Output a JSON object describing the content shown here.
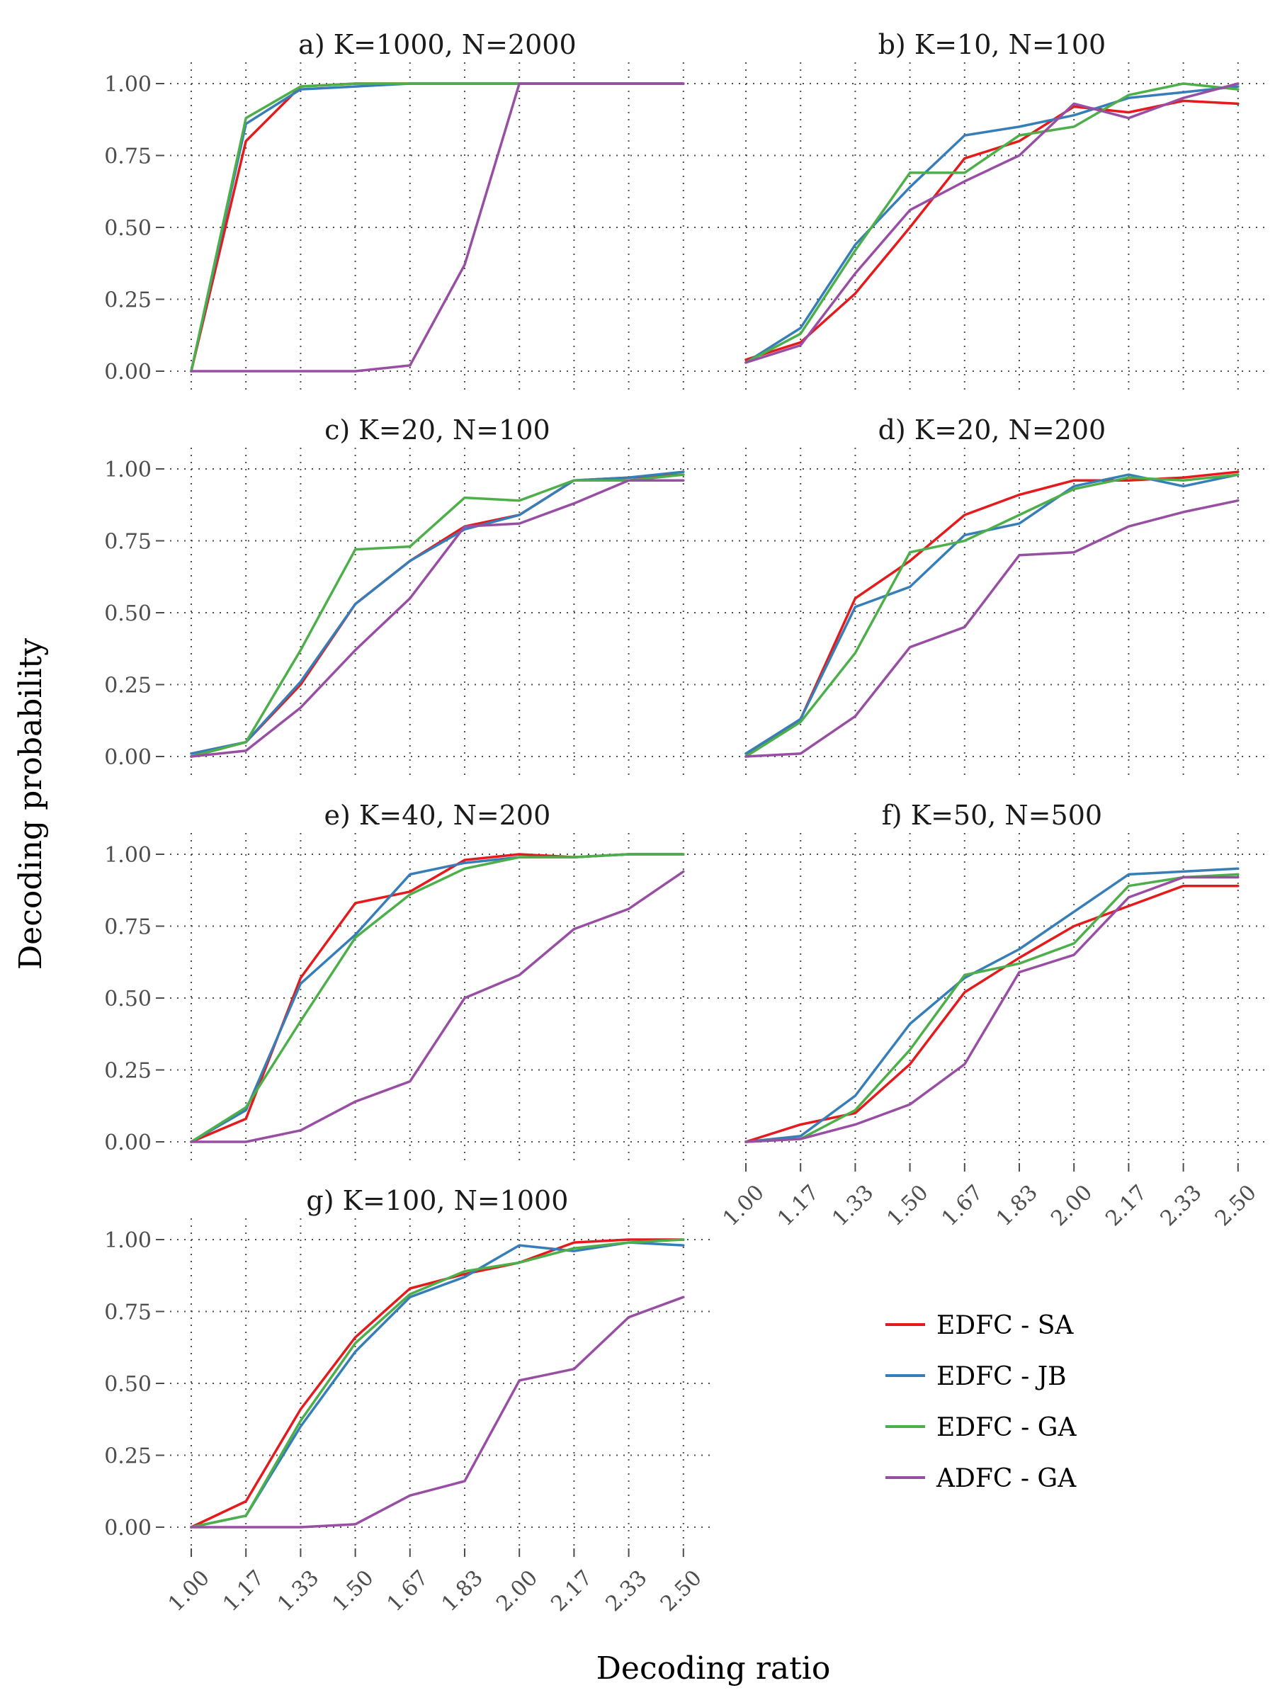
{
  "figure": {
    "xlabel": "Decoding ratio",
    "ylabel": "Decoding probability"
  },
  "legend": [
    {
      "name": "EDFC - SA",
      "color": "#e41a1c"
    },
    {
      "name": "EDFC - JB",
      "color": "#377eb8"
    },
    {
      "name": "EDFC - GA",
      "color": "#4daf4a"
    },
    {
      "name": "ADFC - GA",
      "color": "#984ea3"
    }
  ],
  "chart_data": [
    {
      "type": "line",
      "title": "a) K=1000, N=2000",
      "x": [
        "1.00",
        "1.17",
        "1.33",
        "1.50",
        "1.67",
        "1.83",
        "2.00",
        "2.17",
        "2.33",
        "2.50"
      ],
      "ylim": [
        0,
        1
      ],
      "yticks": [
        "0.00",
        "0.25",
        "0.50",
        "0.75",
        "1.00"
      ],
      "series": [
        {
          "name": "EDFC - SA",
          "values": [
            0.0,
            0.8,
            0.99,
            1.0,
            1.0,
            1.0,
            1.0,
            1.0,
            1.0,
            1.0
          ]
        },
        {
          "name": "EDFC - JB",
          "values": [
            0.0,
            0.86,
            0.98,
            0.99,
            1.0,
            1.0,
            1.0,
            1.0,
            1.0,
            1.0
          ]
        },
        {
          "name": "EDFC - GA",
          "values": [
            0.0,
            0.88,
            0.99,
            1.0,
            1.0,
            1.0,
            1.0,
            1.0,
            1.0,
            1.0
          ]
        },
        {
          "name": "ADFC - GA",
          "values": [
            0.0,
            0.0,
            0.0,
            0.0,
            0.02,
            0.37,
            1.0,
            1.0,
            1.0,
            1.0
          ]
        }
      ]
    },
    {
      "type": "line",
      "title": "b) K=10, N=100",
      "x": [
        "1.00",
        "1.17",
        "1.33",
        "1.50",
        "1.67",
        "1.83",
        "2.00",
        "2.17",
        "2.33",
        "2.50"
      ],
      "ylim": [
        0,
        1
      ],
      "yticks": [
        "0.00",
        "0.25",
        "0.50",
        "0.75",
        "1.00"
      ],
      "series": [
        {
          "name": "EDFC - SA",
          "values": [
            0.04,
            0.1,
            0.27,
            0.5,
            0.74,
            0.8,
            0.92,
            0.9,
            0.94,
            0.93
          ]
        },
        {
          "name": "EDFC - JB",
          "values": [
            0.03,
            0.15,
            0.44,
            0.64,
            0.82,
            0.85,
            0.89,
            0.95,
            0.97,
            0.99
          ]
        },
        {
          "name": "EDFC - GA",
          "values": [
            0.03,
            0.13,
            0.42,
            0.69,
            0.69,
            0.82,
            0.85,
            0.96,
            1.0,
            0.98
          ]
        },
        {
          "name": "ADFC - GA",
          "values": [
            0.03,
            0.09,
            0.34,
            0.56,
            0.66,
            0.75,
            0.93,
            0.88,
            0.95,
            1.0
          ]
        }
      ]
    },
    {
      "type": "line",
      "title": "c) K=20, N=100",
      "x": [
        "1.00",
        "1.17",
        "1.33",
        "1.50",
        "1.67",
        "1.83",
        "2.00",
        "2.17",
        "2.33",
        "2.50"
      ],
      "ylim": [
        0,
        1
      ],
      "yticks": [
        "0.00",
        "0.25",
        "0.50",
        "0.75",
        "1.00"
      ],
      "series": [
        {
          "name": "EDFC - SA",
          "values": [
            0.0,
            0.05,
            0.25,
            0.53,
            0.68,
            0.8,
            0.84,
            0.96,
            0.97,
            0.98
          ]
        },
        {
          "name": "EDFC - JB",
          "values": [
            0.01,
            0.05,
            0.26,
            0.53,
            0.68,
            0.79,
            0.84,
            0.96,
            0.97,
            0.99
          ]
        },
        {
          "name": "EDFC - GA",
          "values": [
            0.0,
            0.05,
            0.37,
            0.72,
            0.73,
            0.9,
            0.89,
            0.96,
            0.96,
            0.98
          ]
        },
        {
          "name": "ADFC - GA",
          "values": [
            0.0,
            0.02,
            0.17,
            0.37,
            0.55,
            0.8,
            0.81,
            0.88,
            0.96,
            0.96
          ]
        }
      ]
    },
    {
      "type": "line",
      "title": "d) K=20, N=200",
      "x": [
        "1.00",
        "1.17",
        "1.33",
        "1.50",
        "1.67",
        "1.83",
        "2.00",
        "2.17",
        "2.33",
        "2.50"
      ],
      "ylim": [
        0,
        1
      ],
      "yticks": [
        "0.00",
        "0.25",
        "0.50",
        "0.75",
        "1.00"
      ],
      "series": [
        {
          "name": "EDFC - SA",
          "values": [
            0.0,
            0.13,
            0.55,
            0.68,
            0.84,
            0.91,
            0.96,
            0.96,
            0.97,
            0.99
          ]
        },
        {
          "name": "EDFC - JB",
          "values": [
            0.01,
            0.13,
            0.52,
            0.59,
            0.77,
            0.81,
            0.94,
            0.98,
            0.94,
            0.98
          ]
        },
        {
          "name": "EDFC - GA",
          "values": [
            0.0,
            0.12,
            0.36,
            0.71,
            0.75,
            0.84,
            0.93,
            0.97,
            0.96,
            0.98
          ]
        },
        {
          "name": "ADFC - GA",
          "values": [
            0.0,
            0.01,
            0.14,
            0.38,
            0.45,
            0.7,
            0.71,
            0.8,
            0.85,
            0.89
          ]
        }
      ]
    },
    {
      "type": "line",
      "title": "e) K=40, N=200",
      "x": [
        "1.00",
        "1.17",
        "1.33",
        "1.50",
        "1.67",
        "1.83",
        "2.00",
        "2.17",
        "2.33",
        "2.50"
      ],
      "ylim": [
        0,
        1
      ],
      "yticks": [
        "0.00",
        "0.25",
        "0.50",
        "0.75",
        "1.00"
      ],
      "series": [
        {
          "name": "EDFC - SA",
          "values": [
            0.0,
            0.08,
            0.57,
            0.83,
            0.87,
            0.98,
            1.0,
            0.99,
            1.0,
            1.0
          ]
        },
        {
          "name": "EDFC - JB",
          "values": [
            0.0,
            0.11,
            0.55,
            0.72,
            0.93,
            0.97,
            0.99,
            0.99,
            1.0,
            1.0
          ]
        },
        {
          "name": "EDFC - GA",
          "values": [
            0.0,
            0.12,
            0.42,
            0.71,
            0.86,
            0.95,
            0.99,
            0.99,
            1.0,
            1.0
          ]
        },
        {
          "name": "ADFC - GA",
          "values": [
            0.0,
            0.0,
            0.04,
            0.14,
            0.21,
            0.5,
            0.58,
            0.74,
            0.81,
            0.94
          ]
        }
      ]
    },
    {
      "type": "line",
      "title": "f) K=50, N=500",
      "x": [
        "1.00",
        "1.17",
        "1.33",
        "1.50",
        "1.67",
        "1.83",
        "2.00",
        "2.17",
        "2.33",
        "2.50"
      ],
      "ylim": [
        0,
        1
      ],
      "yticks": [
        "0.00",
        "0.25",
        "0.50",
        "0.75",
        "1.00"
      ],
      "series": [
        {
          "name": "EDFC - SA",
          "values": [
            0.0,
            0.06,
            0.1,
            0.27,
            0.52,
            0.64,
            0.75,
            0.82,
            0.89,
            0.89
          ]
        },
        {
          "name": "EDFC - JB",
          "values": [
            0.0,
            0.02,
            0.16,
            0.41,
            0.57,
            0.67,
            0.8,
            0.93,
            0.94,
            0.95
          ]
        },
        {
          "name": "EDFC - GA",
          "values": [
            0.0,
            0.01,
            0.11,
            0.32,
            0.58,
            0.62,
            0.69,
            0.89,
            0.92,
            0.93
          ]
        },
        {
          "name": "ADFC - GA",
          "values": [
            0.0,
            0.01,
            0.06,
            0.13,
            0.27,
            0.59,
            0.65,
            0.85,
            0.92,
            0.92
          ]
        }
      ]
    },
    {
      "type": "line",
      "title": "g) K=100, N=1000",
      "x": [
        "1.00",
        "1.17",
        "1.33",
        "1.50",
        "1.67",
        "1.83",
        "2.00",
        "2.17",
        "2.33",
        "2.50"
      ],
      "ylim": [
        0,
        1
      ],
      "yticks": [
        "0.00",
        "0.25",
        "0.50",
        "0.75",
        "1.00"
      ],
      "series": [
        {
          "name": "EDFC - SA",
          "values": [
            0.0,
            0.09,
            0.41,
            0.66,
            0.83,
            0.88,
            0.92,
            0.99,
            1.0,
            1.0
          ]
        },
        {
          "name": "EDFC - JB",
          "values": [
            0.0,
            0.04,
            0.35,
            0.61,
            0.8,
            0.87,
            0.98,
            0.96,
            0.99,
            0.98
          ]
        },
        {
          "name": "EDFC - GA",
          "values": [
            0.0,
            0.04,
            0.37,
            0.64,
            0.81,
            0.89,
            0.92,
            0.97,
            0.99,
            1.0
          ]
        },
        {
          "name": "ADFC - GA",
          "values": [
            0.0,
            0.0,
            0.0,
            0.01,
            0.11,
            0.16,
            0.51,
            0.55,
            0.73,
            0.8
          ]
        }
      ]
    }
  ]
}
